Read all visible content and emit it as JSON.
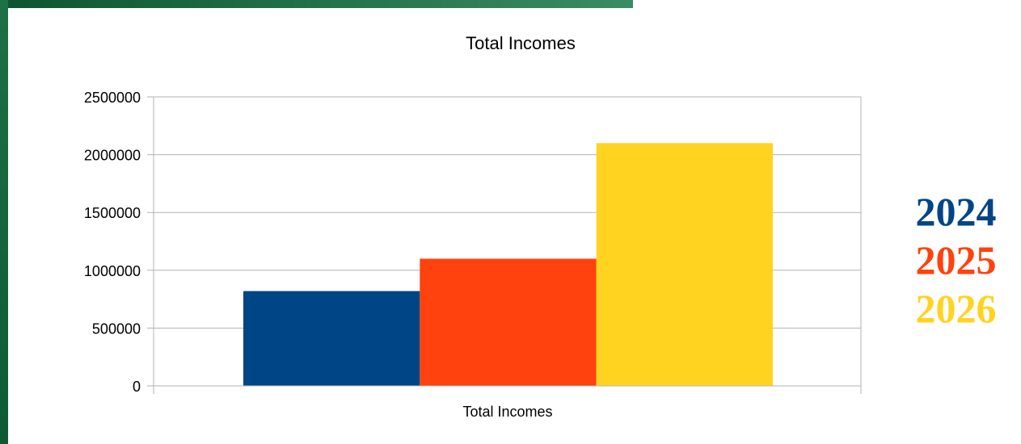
{
  "chart_data": {
    "type": "bar",
    "title": "Total Incomes",
    "xlabel": "",
    "ylabel": "",
    "categories": [
      "Total Incomes"
    ],
    "series": [
      {
        "name": "2024",
        "values": [
          820000
        ],
        "color": "#004586"
      },
      {
        "name": "2025",
        "values": [
          1100000
        ],
        "color": "#ff420e"
      },
      {
        "name": "2026",
        "values": [
          2100000
        ],
        "color": "#ffd320"
      }
    ],
    "ylim": [
      0,
      2500000
    ],
    "yticks": [
      "0",
      "500000",
      "1000000",
      "1500000",
      "2000000",
      "2500000"
    ],
    "grid": true,
    "legend_position": "right"
  },
  "theme": {
    "frame_green_dark": "#0f5a34",
    "frame_green_light": "#2f8a5c",
    "axis_color": "#b3b3b3",
    "text_color": "#000000"
  }
}
